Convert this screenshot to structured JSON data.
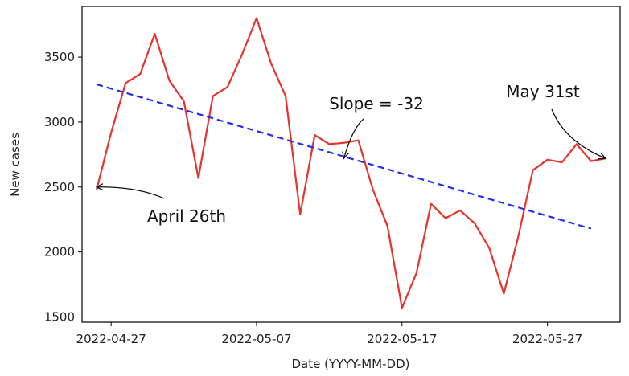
{
  "chart_data": {
    "type": "line",
    "xlabel": "Date (YYYY-MM-DD)",
    "ylabel": "New cases",
    "x_ticks": [
      "2022-04-27",
      "2022-05-07",
      "2022-05-17",
      "2022-05-27"
    ],
    "y_ticks": [
      1500,
      2000,
      2500,
      3000,
      3500
    ],
    "xlim": [
      "2022-04-25",
      "2022-06-01"
    ],
    "ylim": [
      1460,
      3890
    ],
    "grid": false,
    "legend": "none",
    "series": [
      {
        "role": "data",
        "color": "#e8322b",
        "style": "solid",
        "x": [
          "2022-04-26",
          "2022-04-27",
          "2022-04-28",
          "2022-04-29",
          "2022-04-30",
          "2022-05-01",
          "2022-05-02",
          "2022-05-03",
          "2022-05-04",
          "2022-05-05",
          "2022-05-06",
          "2022-05-07",
          "2022-05-08",
          "2022-05-09",
          "2022-05-10",
          "2022-05-11",
          "2022-05-12",
          "2022-05-13",
          "2022-05-14",
          "2022-05-15",
          "2022-05-16",
          "2022-05-17",
          "2022-05-18",
          "2022-05-19",
          "2022-05-20",
          "2022-05-21",
          "2022-05-22",
          "2022-05-23",
          "2022-05-24",
          "2022-05-25",
          "2022-05-26",
          "2022-05-27",
          "2022-05-28",
          "2022-05-29",
          "2022-05-30",
          "2022-05-31"
        ],
        "y": [
          2480,
          2920,
          3300,
          3370,
          3680,
          3320,
          3160,
          2570,
          3200,
          3270,
          3520,
          3800,
          3450,
          3200,
          2290,
          2900,
          2830,
          2840,
          2860,
          2480,
          2200,
          1570,
          1840,
          2370,
          2260,
          2320,
          2220,
          2030,
          1680,
          2120,
          2630,
          2710,
          2690,
          2830,
          2700,
          2720
        ]
      },
      {
        "role": "trend",
        "color": "#1f2ef0",
        "style": "dashed",
        "x": [
          "2022-04-26",
          "2022-05-30"
        ],
        "y": [
          3290,
          2180
        ]
      }
    ],
    "annotations": [
      {
        "text": "April 26th",
        "points_to": {
          "x": "2022-04-26",
          "y": 2500
        }
      },
      {
        "text": "Slope = -32",
        "points_to": {
          "x": "2022-05-13",
          "y": 2720
        }
      },
      {
        "text": "May 31st",
        "points_to": {
          "x": "2022-05-31",
          "y": 2720
        }
      }
    ]
  }
}
